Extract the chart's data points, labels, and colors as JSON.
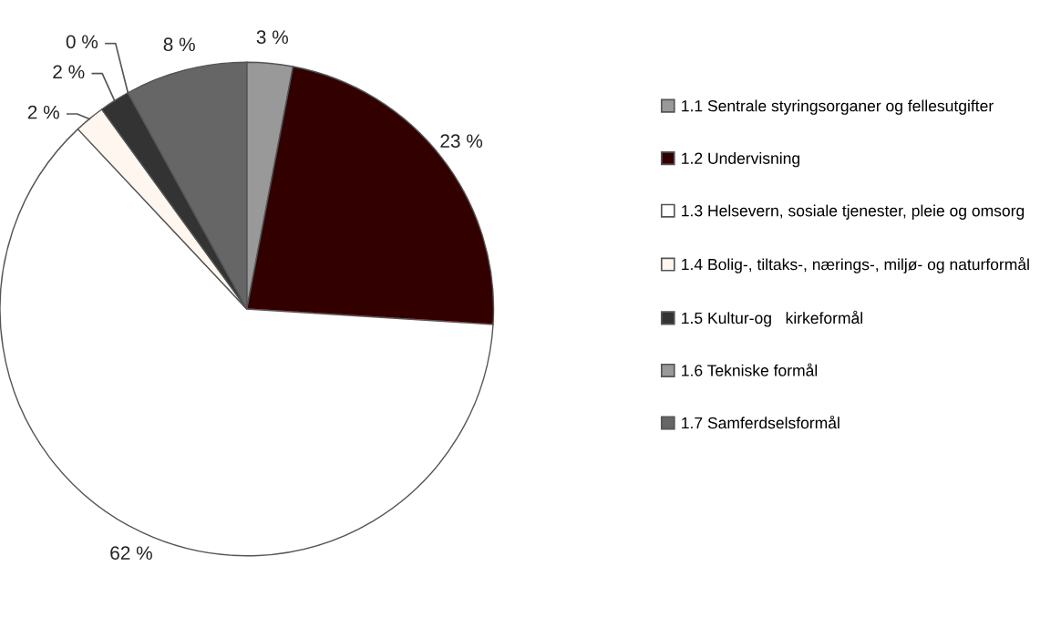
{
  "chart_data": {
    "type": "pie",
    "categories": [
      "1.1 Sentrale styringsorganer og fellesutgifter",
      "1.2 Undervisning",
      "1.3 Helsevern, sosiale tjenester, pleie og omsorg",
      "1.4 Bolig-, tiltaks-, nærings-, miljø- og naturformål",
      "1.5 Kultur-og   kirkeformål",
      "1.6 Tekniske formål",
      "1.7 Samferdselsformål"
    ],
    "values": [
      3,
      23,
      62,
      2,
      2,
      0,
      8
    ],
    "value_labels": [
      "3 %",
      "23 %",
      "62 %",
      "2 %",
      "2 %",
      "0 %",
      "8 %"
    ],
    "colors": [
      "#999999",
      "#330000",
      "#ffffff",
      "#fff6f0",
      "#333333",
      "#999999",
      "#666666"
    ],
    "legend": "right"
  }
}
